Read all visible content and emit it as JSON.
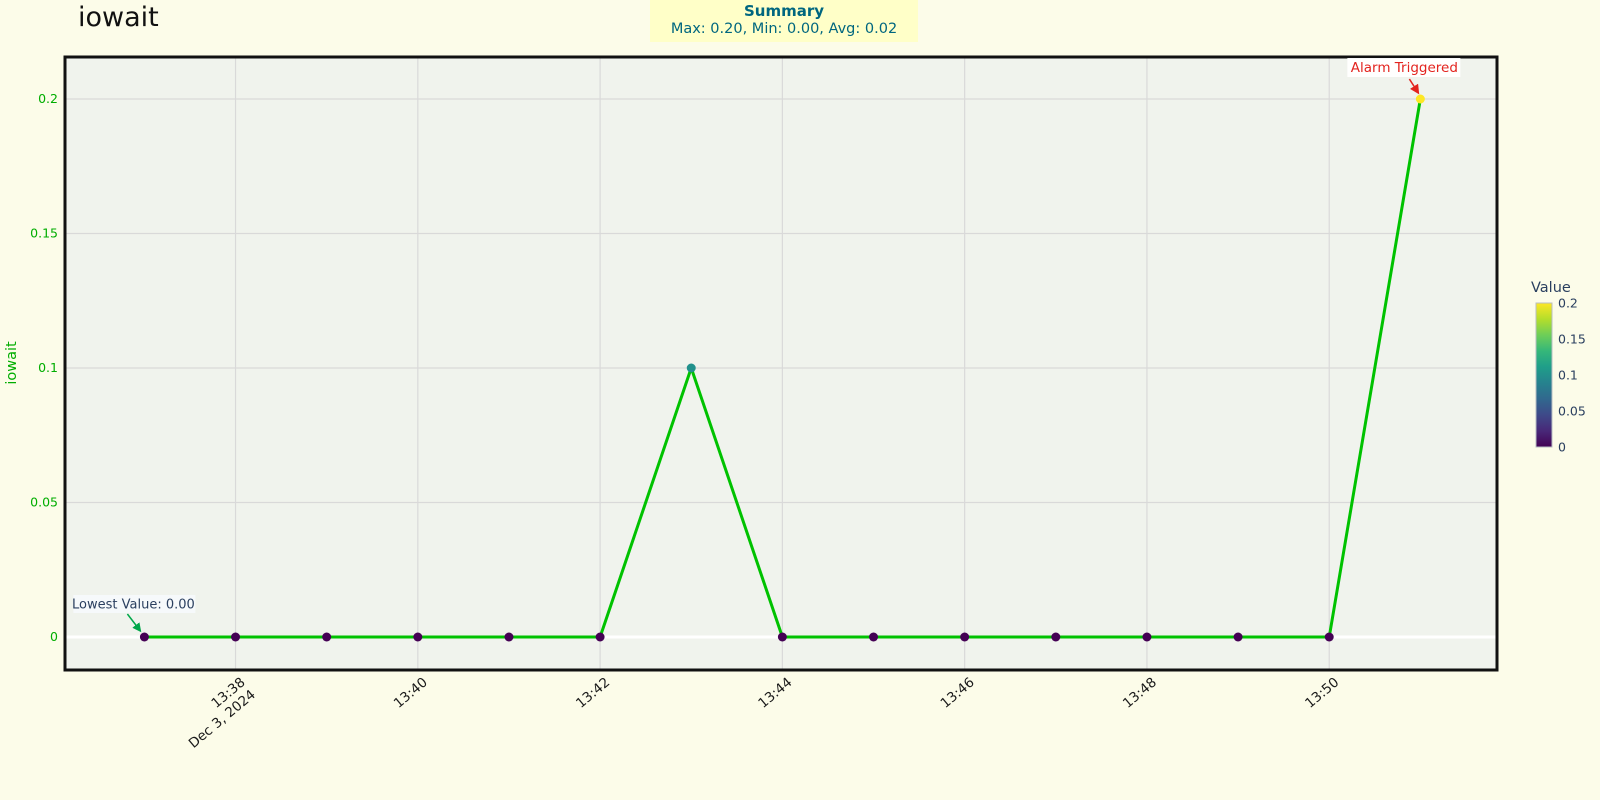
{
  "title": "iowait",
  "summary": {
    "heading": "Summary",
    "stats": "Max: 0.20, Min: 0.00, Avg: 0.02",
    "bg_color": "#ffffc8",
    "text_color": "#00667f"
  },
  "chart_data": {
    "type": "line",
    "title": "iowait",
    "ylabel": "iowait",
    "x": [
      "13:37",
      "13:38",
      "13:39",
      "13:40",
      "13:41",
      "13:42",
      "13:43",
      "13:44",
      "13:45",
      "13:46",
      "13:47",
      "13:48",
      "13:49",
      "13:50",
      "13:51"
    ],
    "values": [
      0,
      0,
      0,
      0,
      0,
      0,
      0.1,
      0,
      0,
      0,
      0,
      0,
      0,
      0,
      0.2
    ],
    "xticks": [
      "13:38",
      "13:40",
      "13:42",
      "13:44",
      "13:46",
      "13:48",
      "13:50"
    ],
    "x_date_label": {
      "tick": "13:38",
      "text": "Dec 3, 2024"
    },
    "yticks": [
      0,
      0.05,
      0.1,
      0.15,
      0.2
    ],
    "ylim": [
      -0.012,
      0.216
    ],
    "grid": true,
    "legend": "colorbar-right",
    "colorbar": {
      "title": "Value",
      "tick_labels": [
        "0.2",
        "0.15",
        "0.1",
        "0.05",
        "0"
      ],
      "stops_top_to_bottom": [
        "#fde725",
        "#b5de2b",
        "#6ece58",
        "#35b779",
        "#1f9e89",
        "#26828e",
        "#31688e",
        "#3e4989",
        "#482878",
        "#440154"
      ]
    },
    "value_color_map": {
      "0.0": "#440154",
      "0.1": "#21918c",
      "0.2": "#fde725"
    },
    "annotations": [
      {
        "id": "alarm",
        "text": "Alarm Triggered",
        "x": "13:51",
        "y": 0.2,
        "text_color": "#e3231e",
        "arrow_color": "#e3231e",
        "bg": "#ffffff"
      },
      {
        "id": "lowest",
        "text": "Lowest Value: 0.00",
        "x": "13:37",
        "y": 0,
        "text_color": "#2a3f5f",
        "arrow_color": "#00a74a",
        "bg": "#f6fafc"
      }
    ],
    "colors": {
      "line": "#00c200",
      "plot_bg": "#f0f3ed",
      "page_bg": "#fcfce9",
      "grid": "#d9d9d9",
      "zero_line": "#ffffff",
      "border": "#111111",
      "y_axis_text": "#00ad00",
      "x_axis_text": "#1a1a1a",
      "colorbar_text": "#2a3f5f"
    }
  }
}
